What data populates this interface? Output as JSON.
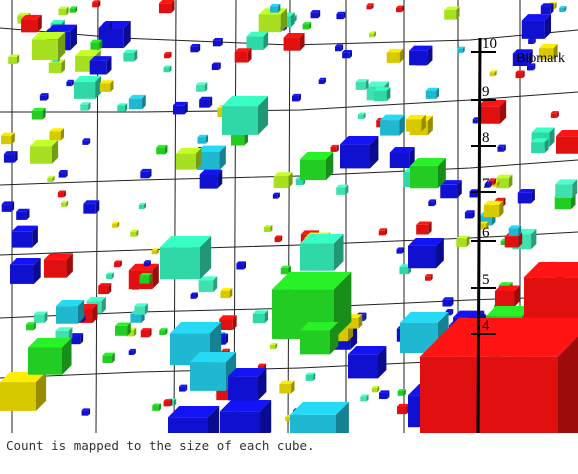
{
  "viewer": {
    "axis_title": "Biomark",
    "ticks": [
      "10",
      "9",
      "8",
      "7",
      "6",
      "5",
      "4"
    ],
    "colors": {
      "red": "#e01010",
      "blue": "#1010d0",
      "green": "#22cc22",
      "cyan": "#20b8d0",
      "teal": "#30d8a8",
      "lime": "#a6e020",
      "yellow": "#d8c800",
      "mint": "#40e0b0"
    }
  },
  "caption": "Count is mapped to the size of each cube."
}
